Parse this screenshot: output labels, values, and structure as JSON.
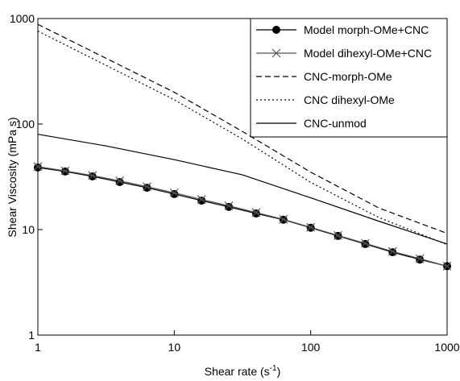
{
  "chart_data": {
    "type": "line",
    "x_label": "Shear rate (s",
    "x_label_sup": "-1",
    "x_label_end": ")",
    "y_label": "Shear Viscosity (mPa s)",
    "log_x": true,
    "log_y": true,
    "xlim": [
      1,
      1000
    ],
    "ylim": [
      1,
      1000
    ],
    "xticks": [
      1,
      10,
      100,
      1000
    ],
    "yticks": [
      1,
      10,
      100,
      1000
    ],
    "legend": "upper right",
    "series": [
      {
        "name": "Model morph-OMe+CNC",
        "color": "#000000",
        "style": "solid",
        "marker": "circle",
        "x": [
          1,
          1.585,
          2.512,
          3.981,
          6.31,
          10,
          15.85,
          25.12,
          39.81,
          63.1,
          100,
          158.5,
          251.2,
          398.1,
          631,
          1000
        ],
        "values": [
          38.7,
          35.5,
          31.9,
          28.2,
          24.9,
          21.7,
          18.8,
          16.4,
          14.2,
          12.4,
          10.4,
          8.7,
          7.3,
          6.1,
          5.2,
          4.5
        ]
      },
      {
        "name": "Model dihexyl-OMe+CNC",
        "color": "#555555",
        "style": "solid",
        "marker": "x",
        "x": [
          1,
          1.585,
          2.512,
          3.981,
          6.31,
          10,
          15.85,
          25.12,
          39.81,
          63.1,
          100,
          158.5,
          251.2,
          398.1,
          631,
          1000
        ],
        "values": [
          39.5,
          36,
          32.5,
          29,
          25.5,
          22.3,
          19.3,
          16.8,
          14.5,
          12.5,
          10.5,
          8.8,
          7.4,
          6.2,
          5.3,
          4.5
        ]
      },
      {
        "name": "CNC-morph-OMe",
        "color": "#000000",
        "style": "dashed",
        "marker": "none",
        "x": [
          1,
          3.162,
          10,
          31.62,
          100,
          316.2,
          1000
        ],
        "values": [
          880,
          420,
          200,
          85,
          35,
          16,
          9.2
        ]
      },
      {
        "name": "CNC dihexyl-OMe",
        "color": "#000000",
        "style": "dotted",
        "marker": "none",
        "x": [
          1,
          3.162,
          10,
          31.62,
          100,
          316.2,
          1000
        ],
        "values": [
          760,
          360,
          170,
          72,
          28,
          13,
          7.2
        ]
      },
      {
        "name": "CNC-unmod",
        "color": "#000000",
        "style": "solid",
        "marker": "none",
        "x": [
          1,
          3.162,
          10,
          31.62,
          100,
          316.2,
          1000
        ],
        "values": [
          80,
          62,
          46,
          33,
          20,
          12,
          7.3
        ]
      }
    ]
  }
}
